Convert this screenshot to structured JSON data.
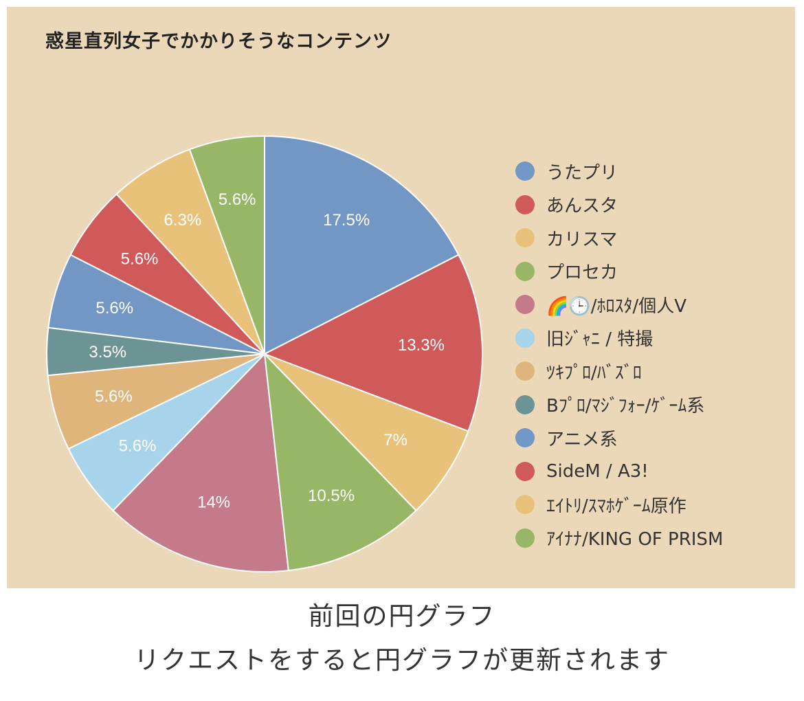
{
  "chart_data": {
    "type": "pie",
    "title": "惑星直列女子でかかりそうなコンテンツ",
    "categories": [
      "うたプリ",
      "あんスタ",
      "カリスマ",
      "プロセカ",
      "🌈🕒/ﾎﾛｽﾀ/個人V",
      "旧ｼﾞｬﾆ / 特撮",
      "ﾂｷﾌﾟﾛ/ﾊﾞｽﾞﾛ",
      "Bﾌﾟﾛ/ﾏｼﾞﾌｫｰ/ｹﾞｰﾑ系",
      "アニメ系",
      "SideM / A3!",
      "ｴｲﾄﾘ/ｽﾏﾎｹﾞｰﾑ原作",
      "ｱｲﾅﾅ/KING OF PRISM"
    ],
    "values": [
      17.5,
      13.3,
      7,
      10.5,
      14,
      5.6,
      5.6,
      3.5,
      5.6,
      5.6,
      6.3,
      5.6
    ],
    "labels": [
      "17.5%",
      "13.3%",
      "7%",
      "10.5%",
      "14%",
      "5.6%",
      "5.6%",
      "3.5%",
      "5.6%",
      "5.6%",
      "6.3%",
      "5.6%"
    ],
    "colors": [
      "#7397c4",
      "#d05a5a",
      "#e8c27b",
      "#97b766",
      "#c47a89",
      "#a8d4eb",
      "#dfb57c",
      "#6d9495",
      "#7397c4",
      "#d05a5a",
      "#e8c27b",
      "#97b766"
    ],
    "legend_position": "right"
  },
  "captions": {
    "line1": "前回の円グラフ",
    "line2": "リクエストをすると円グラフが更新されます"
  }
}
